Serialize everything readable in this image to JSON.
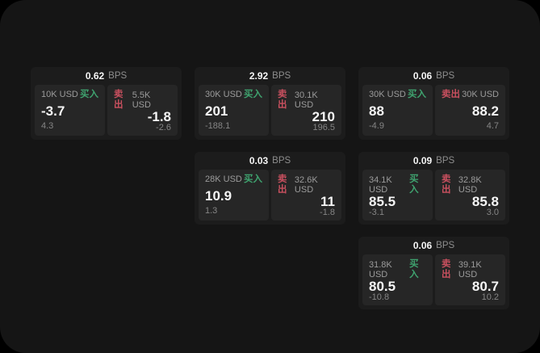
{
  "theme": {
    "bg": "#000000",
    "panel_bg": "#151515",
    "card_bg": "#1c1c1c",
    "tile_bg": "#262626",
    "text_primary": "#f5f5f5",
    "text_secondary": "#9b9b9b",
    "buy_green": "#3fa36f",
    "sell_red": "#c9505f"
  },
  "labels": {
    "bps": "BPS",
    "buy": "买入",
    "sell": "卖出"
  },
  "cards": [
    {
      "bps": "0.62",
      "buy_amount": "10K USD",
      "buy_price": "-3.7",
      "buy_delta": "4.3",
      "sell_amount": "5.5K USD",
      "sell_price": "-1.8",
      "sell_delta": "-2.6"
    },
    {
      "bps": "2.92",
      "buy_amount": "30K USD",
      "buy_price": "201",
      "buy_delta": "-188.1",
      "sell_amount": "30.1K USD",
      "sell_price": "210",
      "sell_delta": "196.5"
    },
    {
      "bps": "0.06",
      "buy_amount": "30K USD",
      "buy_price": "88",
      "buy_delta": "-4.9",
      "sell_amount": "30K USD",
      "sell_price": "88.2",
      "sell_delta": "4.7"
    },
    {
      "bps": "0.03",
      "buy_amount": "28K USD",
      "buy_price": "10.9",
      "buy_delta": "1.3",
      "sell_amount": "32.6K USD",
      "sell_price": "11",
      "sell_delta": "-1.8"
    },
    {
      "bps": "0.09",
      "buy_amount": "34.1K USD",
      "buy_price": "85.5",
      "buy_delta": "-3.1",
      "sell_amount": "32.8K USD",
      "sell_price": "85.8",
      "sell_delta": "3.0"
    },
    {
      "bps": "0.06",
      "buy_amount": "31.8K USD",
      "buy_price": "80.5",
      "buy_delta": "-10.8",
      "sell_amount": "39.1K USD",
      "sell_price": "80.7",
      "sell_delta": "10.2"
    }
  ]
}
